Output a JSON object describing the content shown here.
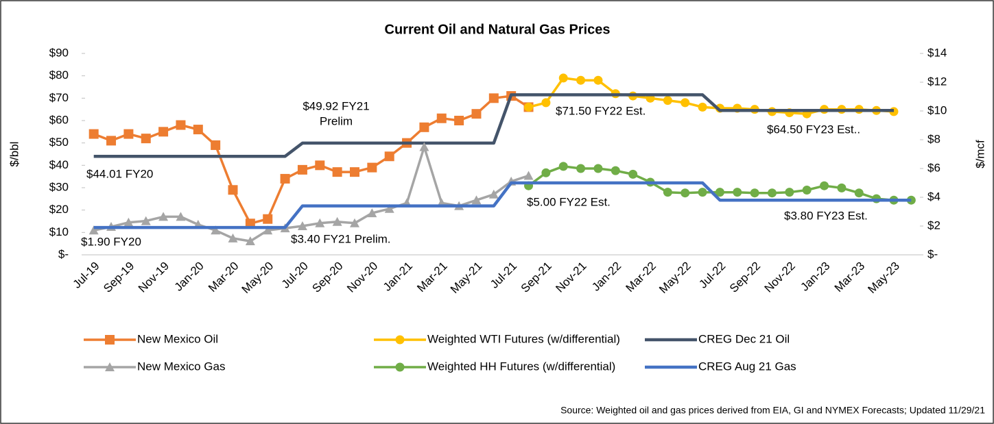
{
  "chart_data": {
    "type": "line",
    "title": "Current Oil and Natural Gas Prices",
    "ylabel": "$/bbl",
    "y2label": "$/mcf",
    "source": "Source: Weighted oil and gas prices derived from EIA, GI and NYMEX Forecasts; Updated 11/29/21",
    "categories": [
      "Jul-19",
      null,
      "Sep-19",
      null,
      "Nov-19",
      null,
      "Jan-20",
      null,
      "Mar-20",
      null,
      "May-20",
      null,
      "Jul-20",
      null,
      "Sep-20",
      null,
      "Nov-20",
      null,
      "Jan-21",
      null,
      "Mar-21",
      null,
      "May-21",
      null,
      "Jul-21",
      null,
      "Sep-21",
      null,
      "Nov-21",
      null,
      "Jan-22",
      null,
      "Mar-22",
      null,
      "May-22",
      null,
      "Jul-22",
      null,
      "Sep-22",
      null,
      "Nov-22",
      null,
      "Jan-23",
      null,
      "Mar-23",
      null,
      "May-23",
      null
    ],
    "ylim": [
      0,
      90
    ],
    "yticks": [
      {
        "value": 0,
        "label": "$-"
      },
      {
        "value": 10,
        "label": "$10"
      },
      {
        "value": 20,
        "label": "$20"
      },
      {
        "value": 30,
        "label": "$30"
      },
      {
        "value": 40,
        "label": "$40"
      },
      {
        "value": 50,
        "label": "$50"
      },
      {
        "value": 60,
        "label": "$60"
      },
      {
        "value": 70,
        "label": "$70"
      },
      {
        "value": 80,
        "label": "$80"
      },
      {
        "value": 90,
        "label": "$90"
      }
    ],
    "y2lim": [
      0,
      14
    ],
    "y2ticks": [
      {
        "value": 0,
        "label": "$-"
      },
      {
        "value": 2,
        "label": "$2"
      },
      {
        "value": 4,
        "label": "$4"
      },
      {
        "value": 6,
        "label": "$6"
      },
      {
        "value": 8,
        "label": "$8"
      },
      {
        "value": 10,
        "label": "$10"
      },
      {
        "value": 12,
        "label": "$12"
      },
      {
        "value": 14,
        "label": "$14"
      }
    ],
    "series": [
      {
        "name": "New Mexico Oil",
        "color": "#ED7D31",
        "marker": "square",
        "values": [
          54,
          51,
          54,
          52,
          55,
          58,
          56,
          49,
          29,
          14,
          16,
          34,
          38,
          40,
          37,
          37,
          39,
          44,
          50,
          57,
          61,
          60,
          63,
          70,
          71,
          66,
          null,
          null,
          null,
          null,
          null,
          null,
          null,
          null,
          null,
          null,
          null,
          null,
          null,
          null,
          null,
          null,
          null,
          null,
          null,
          null,
          null,
          null
        ]
      },
      {
        "name": "Weighted WTI Futures (w/differential)",
        "color": "#FFC000",
        "marker": "circle",
        "values": [
          null,
          null,
          null,
          null,
          null,
          null,
          null,
          null,
          null,
          null,
          null,
          null,
          null,
          null,
          null,
          null,
          null,
          null,
          null,
          null,
          null,
          null,
          null,
          null,
          null,
          66,
          68,
          79,
          78,
          78,
          72,
          71,
          70,
          69,
          68,
          66,
          65.5,
          65.5,
          65,
          64,
          63.5,
          63,
          65,
          65,
          65,
          64.5,
          64,
          null
        ]
      },
      {
        "name": "CREG Dec 21 Oil",
        "color": "#44546A",
        "marker": "none",
        "values": [
          44.01,
          44.01,
          44.01,
          44.01,
          44.01,
          44.01,
          44.01,
          44.01,
          44.01,
          44.01,
          44.01,
          44.01,
          49.92,
          49.92,
          49.92,
          49.92,
          49.92,
          49.92,
          49.92,
          49.92,
          49.92,
          49.92,
          49.92,
          49.92,
          71.5,
          71.5,
          71.5,
          71.5,
          71.5,
          71.5,
          71.5,
          71.5,
          71.5,
          71.5,
          71.5,
          71.5,
          64.5,
          64.5,
          64.5,
          64.5,
          64.5,
          64.5,
          64.5,
          64.5,
          64.5,
          64.5,
          64.5,
          null
        ]
      },
      {
        "name": "New Mexico Gas",
        "color": "#A5A5A5",
        "marker": "triangle",
        "axis": "y2",
        "values": [
          1.7,
          1.95,
          2.25,
          2.35,
          2.65,
          2.65,
          2.1,
          1.7,
          1.15,
          0.95,
          1.7,
          1.85,
          2.0,
          2.2,
          2.3,
          2.2,
          2.9,
          3.2,
          3.6,
          7.5,
          3.6,
          3.4,
          3.8,
          4.2,
          5.1,
          5.5,
          null,
          null,
          null,
          null,
          null,
          null,
          null,
          null,
          null,
          null,
          null,
          null,
          null,
          null,
          null,
          null,
          null,
          null,
          null,
          null,
          null,
          null
        ]
      },
      {
        "name": "Weighted HH Futures (w/differential)",
        "color": "#70AD47",
        "marker": "circle",
        "axis": "y2",
        "values": [
          null,
          null,
          null,
          null,
          null,
          null,
          null,
          null,
          null,
          null,
          null,
          null,
          null,
          null,
          null,
          null,
          null,
          null,
          null,
          null,
          null,
          null,
          null,
          null,
          null,
          4.8,
          5.7,
          6.15,
          6.0,
          6.0,
          5.85,
          5.6,
          5.05,
          4.35,
          4.3,
          4.35,
          4.35,
          4.35,
          4.3,
          4.3,
          4.35,
          4.5,
          4.8,
          4.65,
          4.3,
          3.9,
          3.8,
          3.8
        ]
      },
      {
        "name": "CREG Aug 21 Gas",
        "color": "#4472C4",
        "marker": "none",
        "axis": "y2",
        "values": [
          1.9,
          1.9,
          1.9,
          1.9,
          1.9,
          1.9,
          1.9,
          1.9,
          1.9,
          1.9,
          1.9,
          1.9,
          3.4,
          3.4,
          3.4,
          3.4,
          3.4,
          3.4,
          3.4,
          3.4,
          3.4,
          3.4,
          3.4,
          3.4,
          5.0,
          5.0,
          5.0,
          5.0,
          5.0,
          5.0,
          5.0,
          5.0,
          5.0,
          5.0,
          5.0,
          5.0,
          3.8,
          3.8,
          3.8,
          3.8,
          3.8,
          3.8,
          3.8,
          3.8,
          3.8,
          3.8,
          3.8,
          3.8
        ]
      }
    ],
    "annotations": [
      {
        "lines": [
          "$49.92 FY21",
          "Prelim"
        ]
      },
      {
        "lines": [
          "$44.01 FY20"
        ]
      },
      {
        "lines": [
          "$71.50 FY22 Est."
        ]
      },
      {
        "lines": [
          "$64.50 FY23 Est.."
        ]
      },
      {
        "lines": [
          "$5.00 FY22 Est."
        ]
      },
      {
        "lines": [
          "$3.80 FY23 Est."
        ]
      },
      {
        "lines": [
          "$1.90 FY20"
        ]
      },
      {
        "lines": [
          "$3.40 FY21 Prelim."
        ]
      }
    ]
  }
}
